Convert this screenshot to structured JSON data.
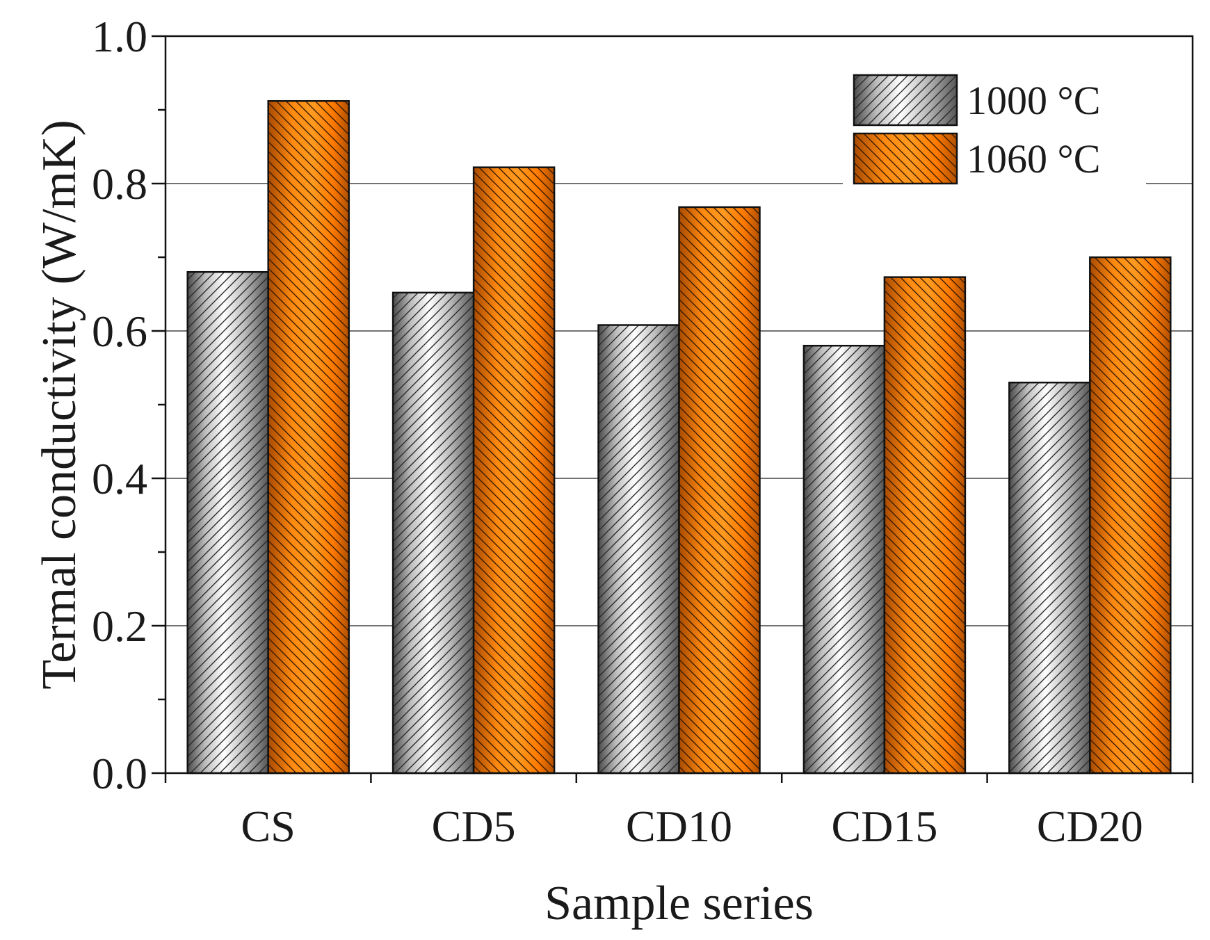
{
  "chart_data": {
    "type": "bar",
    "title": "",
    "xlabel": "Sample series",
    "ylabel": "Termal conductivity (W/mK)",
    "categories": [
      "CS",
      "CD5",
      "CD10",
      "CD15",
      "CD20"
    ],
    "series": [
      {
        "name": "1000 °C",
        "values": [
          0.68,
          0.652,
          0.608,
          0.58,
          0.53
        ],
        "color": "#bfbfbf"
      },
      {
        "name": "1060 °C",
        "values": [
          0.912,
          0.822,
          0.768,
          0.673,
          0.7
        ],
        "color": "#ff8000"
      }
    ],
    "ylim": [
      0,
      1.0
    ],
    "yticks": [
      0.0,
      0.2,
      0.4,
      0.6,
      0.8,
      1.0
    ],
    "ytick_labels": [
      "0.0",
      "0.2",
      "0.4",
      "0.6",
      "0.8",
      "1.0"
    ],
    "grid": true,
    "legend_position": "top-right"
  }
}
